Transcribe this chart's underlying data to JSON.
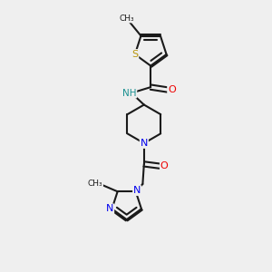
{
  "background_color": "#efefef",
  "bond_color": "#1a1a1a",
  "atom_colors": {
    "S": "#b8960a",
    "N": "#0000ee",
    "O": "#ee0000",
    "NH": "#1a9090",
    "C": "#1a1a1a"
  },
  "figsize": [
    3.0,
    3.0
  ],
  "dpi": 100,
  "xlim": [
    0,
    10
  ],
  "ylim": [
    0,
    10
  ]
}
